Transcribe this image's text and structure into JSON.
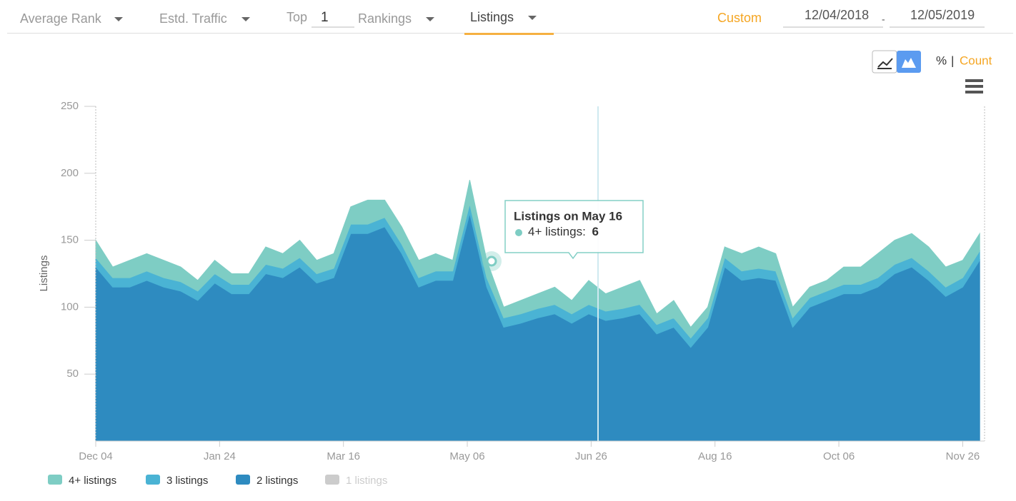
{
  "header": {
    "filters": [
      "Average Rank",
      "Estd. Traffic"
    ],
    "top_label": "Top",
    "top_value": "1",
    "rankings": "Rankings",
    "active_tab": "Listings",
    "custom": "Custom",
    "date_from": "12/04/2018",
    "date_sep": "-",
    "date_to": "12/05/2019",
    "percent": "%",
    "pipe": "|",
    "count": "Count"
  },
  "chart_data": {
    "type": "stacked_area",
    "y_label": "Listings",
    "x": [
      0,
      7,
      14,
      21,
      28,
      35,
      42,
      49,
      56,
      63,
      70,
      77,
      84,
      91,
      98,
      105,
      112,
      119,
      126,
      133,
      140,
      147,
      154,
      161,
      168,
      175,
      182,
      189,
      196,
      203,
      210,
      217,
      224,
      231,
      238,
      245,
      252,
      259,
      266,
      273,
      280,
      287,
      294,
      301,
      308,
      315,
      322,
      329,
      336,
      343,
      350,
      357,
      364
    ],
    "xlim": [
      0,
      366
    ],
    "xticks": [
      {
        "value": 0,
        "label": "Dec 04"
      },
      {
        "value": 51,
        "label": "Jan 24"
      },
      {
        "value": 102,
        "label": "Mar 16"
      },
      {
        "value": 153,
        "label": "May 06"
      },
      {
        "value": 204,
        "label": "Jun 26"
      },
      {
        "value": 255,
        "label": "Aug 16"
      },
      {
        "value": 306,
        "label": "Oct 06"
      },
      {
        "value": 357,
        "label": "Nov 26"
      }
    ],
    "ylim": [
      0,
      250
    ],
    "yticks": [
      50,
      100,
      150,
      200,
      250
    ],
    "series": [
      {
        "name": "2 listings",
        "color": "#2e8bc0",
        "values": [
          130,
          115,
          115,
          120,
          115,
          112,
          105,
          118,
          110,
          110,
          125,
          122,
          130,
          118,
          122,
          155,
          155,
          160,
          140,
          115,
          120,
          120,
          170,
          115,
          85,
          88,
          92,
          95,
          88,
          95,
          90,
          92,
          95,
          80,
          85,
          70,
          85,
          130,
          120,
          122,
          120,
          85,
          100,
          105,
          110,
          110,
          115,
          125,
          130,
          120,
          108,
          115,
          135
        ]
      },
      {
        "name": "3 listings",
        "color": "#4ab3d4",
        "values": [
          7,
          7,
          7,
          7,
          7,
          7,
          7,
          7,
          7,
          7,
          7,
          7,
          7,
          7,
          7,
          7,
          7,
          7,
          7,
          7,
          7,
          7,
          7,
          7,
          7,
          7,
          7,
          7,
          7,
          7,
          7,
          7,
          7,
          7,
          7,
          7,
          7,
          7,
          7,
          7,
          7,
          7,
          7,
          7,
          7,
          7,
          7,
          7,
          7,
          7,
          7,
          7,
          7
        ]
      },
      {
        "name": "4+ listings",
        "color": "#7ecdc4",
        "values": [
          13,
          8,
          13,
          13,
          13,
          11,
          8,
          10,
          8,
          8,
          13,
          11,
          13,
          10,
          11,
          13,
          18,
          13,
          13,
          13,
          13,
          8,
          18,
          13,
          8,
          10,
          11,
          13,
          10,
          18,
          13,
          16,
          18,
          8,
          13,
          8,
          8,
          8,
          13,
          16,
          13,
          8,
          8,
          8,
          13,
          13,
          18,
          18,
          18,
          18,
          15,
          13,
          13
        ]
      }
    ],
    "hidden_series": [
      {
        "name": "1 listings",
        "color": "#cccccc"
      }
    ],
    "tooltip": {
      "title": "Listings on May 16",
      "label": "4+ listings: ",
      "value": 6
    }
  }
}
